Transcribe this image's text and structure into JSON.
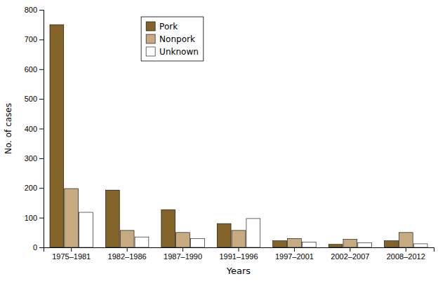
{
  "chart_data": {
    "type": "bar",
    "xlabel": "Years",
    "ylabel": "No. of cases",
    "categories": [
      "1975–1981",
      "1982–1986",
      "1987–1990",
      "1991–1996",
      "1997–2001",
      "2002–2007",
      "2008–2012"
    ],
    "series": [
      {
        "name": "Pork",
        "color": "#836327",
        "values": [
          750,
          193,
          127,
          80,
          22,
          10,
          22
        ]
      },
      {
        "name": "Nonpork",
        "color": "#C8AA82",
        "values": [
          198,
          57,
          50,
          57,
          30,
          27,
          50
        ]
      },
      {
        "name": "Unknown",
        "color": "#FFFFFF",
        "values": [
          118,
          35,
          30,
          97,
          18,
          15,
          12
        ]
      }
    ],
    "ylim": [
      0,
      800
    ],
    "yticks": [
      0,
      100,
      200,
      300,
      400,
      500,
      600,
      700,
      800
    ],
    "grid": false,
    "legend": "top"
  }
}
